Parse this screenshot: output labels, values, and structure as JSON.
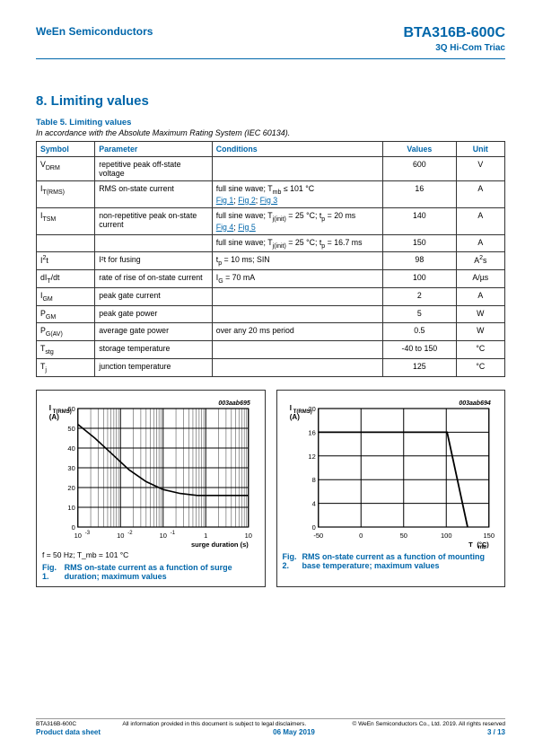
{
  "header": {
    "company": "WeEn Semiconductors",
    "part": "BTA316B-600C",
    "subtitle": "3Q Hi-Com Triac"
  },
  "section": {
    "title": "8. Limiting values"
  },
  "table5": {
    "title": "Table 5. Limiting values",
    "subtitle": "In accordance with the Absolute Maximum Rating System (IEC 60134).",
    "columns": [
      "Symbol",
      "Parameter",
      "Conditions",
      "Values",
      "Unit"
    ],
    "rows": [
      {
        "sym": "V_DRM",
        "param": "repetitive peak off-state voltage",
        "cond": "",
        "val": "600",
        "unit": "V",
        "links": []
      },
      {
        "sym": "I_T(RMS)",
        "param": "RMS on-state current",
        "cond": "full sine wave; T_mb ≤ 101 °C",
        "val": "16",
        "unit": "A",
        "links": [
          "Fig 1",
          "Fig 2",
          "Fig 3"
        ]
      },
      {
        "sym": "I_TSM",
        "param": "non-repetitive peak on-state current",
        "cond": "full sine wave; T_j(init) = 25 °C; t_p = 20 ms",
        "val": "140",
        "unit": "A",
        "links": [
          "Fig 4",
          "Fig 5"
        ]
      },
      {
        "sym": "",
        "param": "",
        "cond": "full sine wave; T_j(init) = 25 °C; t_p = 16.7 ms",
        "val": "150",
        "unit": "A",
        "links": []
      },
      {
        "sym": "I²t",
        "param": "I²t for fusing",
        "cond": "t_p = 10 ms; SIN",
        "val": "98",
        "unit": "A²s",
        "links": []
      },
      {
        "sym": "dI_T/dt",
        "param": "rate of rise of on-state current",
        "cond": "I_G = 70 mA",
        "val": "100",
        "unit": "A/µs",
        "links": []
      },
      {
        "sym": "I_GM",
        "param": "peak gate current",
        "cond": "",
        "val": "2",
        "unit": "A",
        "links": []
      },
      {
        "sym": "P_GM",
        "param": "peak gate power",
        "cond": "",
        "val": "5",
        "unit": "W",
        "links": []
      },
      {
        "sym": "P_G(AV)",
        "param": "average gate power",
        "cond": "over any 20 ms period",
        "val": "0.5",
        "unit": "W",
        "links": []
      },
      {
        "sym": "T_stg",
        "param": "storage temperature",
        "cond": "",
        "val": "-40 to 150",
        "unit": "°C",
        "links": []
      },
      {
        "sym": "T_j",
        "param": "junction temperature",
        "cond": "",
        "val": "125",
        "unit": "°C",
        "links": []
      }
    ]
  },
  "fig1": {
    "id": "003aab695",
    "ylabel": "I_T(RMS) (A)",
    "xlabel": "surge duration (s)",
    "ylim": [
      0,
      60
    ],
    "ytick_step": 10,
    "xscale": "log",
    "xlim_exp": [
      -3,
      1
    ],
    "xticks": [
      "10^-3",
      "10^-2",
      "10^-1",
      "1",
      "10"
    ],
    "curve_xlog": [
      -3,
      -2.6,
      -2.2,
      -1.8,
      -1.4,
      -1.0,
      -0.6,
      -0.2,
      0.2,
      0.6,
      1.0
    ],
    "curve_y": [
      52,
      45,
      37,
      29,
      23,
      19,
      17,
      16,
      16,
      16,
      16
    ],
    "line_color": "#000000",
    "line_width": 1.6,
    "grid_color": "#000000",
    "condition": "f = 50 Hz; T_mb = 101 °C",
    "num": "Fig. 1.",
    "caption": "RMS on-state current as a function of surge duration; maximum values"
  },
  "fig2": {
    "id": "003aab694",
    "ylabel": "I_T(RMS) (A)",
    "xlabel": "T_mb (°C)",
    "ylim": [
      0,
      20
    ],
    "ytick_step": 4,
    "xlim": [
      -50,
      150
    ],
    "xtick_step": 50,
    "curve_x": [
      -50,
      101,
      125
    ],
    "curve_y": [
      16,
      16,
      0
    ],
    "line_color": "#000000",
    "line_width": 1.8,
    "grid_color": "#000000",
    "num": "Fig. 2.",
    "caption": "RMS on-state current as a function of mounting base temperature; maximum values"
  },
  "footer": {
    "left1": "BTA316B-600C",
    "mid1": "All information provided in this document is subject to legal disclaimers.",
    "right1": "© WeEn Semiconductors Co., Ltd. 2019. All rights reserved",
    "left2": "Product data sheet",
    "mid2": "06 May 2019",
    "right2": "3 / 13"
  }
}
